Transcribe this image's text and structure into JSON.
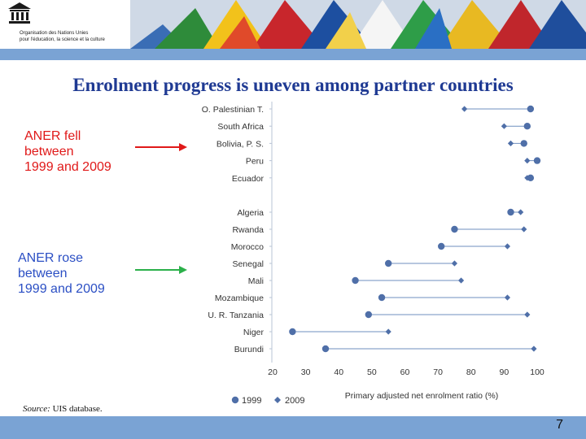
{
  "header": {
    "org_name_line1": "Organisation des Nations Unies",
    "org_name_line2": "pour l'éducation, la science et la culture"
  },
  "slide": {
    "title": "Enrolment progress is uneven among partner countries",
    "callout_fell": "ANER  fell\nbetween\n1999 and 2009",
    "callout_rose": "ANER  rose\nbetween\n1999 and 2009",
    "source_label": "Source:",
    "source_text": " UIS database.",
    "page_number": "7"
  },
  "colors": {
    "title": "#1f3a93",
    "fell": "#e01919",
    "rose": "#2bb04a",
    "marker": "#4f6fa8",
    "band": "#7aa3d4"
  },
  "chart_data": {
    "type": "dumbbell",
    "xlabel": "Primary adjusted net enrolment ratio (%)",
    "xlim": [
      20,
      100
    ],
    "xticks": [
      20,
      30,
      40,
      50,
      60,
      70,
      80,
      90,
      100
    ],
    "legend_position": "bottom",
    "grid": false,
    "groups": [
      {
        "name": "fell",
        "countries": [
          "O. Palestinian T.",
          "South Africa",
          "Bolivia, P. S.",
          "Peru",
          "Ecuador"
        ]
      },
      {
        "name": "rose",
        "countries": [
          "Algeria",
          "Rwanda",
          "Morocco",
          "Senegal",
          "Mali",
          "Mozambique",
          "U. R. Tanzania",
          "Niger",
          "Burundi"
        ]
      }
    ],
    "categories": [
      "O. Palestinian T.",
      "South Africa",
      "Bolivia, P. S.",
      "Peru",
      "Ecuador",
      "Algeria",
      "Rwanda",
      "Morocco",
      "Senegal",
      "Mali",
      "Mozambique",
      "U. R. Tanzania",
      "Niger",
      "Burundi"
    ],
    "series": [
      {
        "name": "1999",
        "marker": "circle",
        "values": [
          98,
          97,
          96,
          100,
          98,
          92,
          75,
          71,
          55,
          45,
          53,
          49,
          26,
          36
        ]
      },
      {
        "name": "2009",
        "marker": "diamond",
        "values": [
          78,
          90,
          92,
          97,
          97,
          95,
          96,
          91,
          75,
          77,
          91,
          97,
          55,
          99
        ]
      }
    ]
  }
}
